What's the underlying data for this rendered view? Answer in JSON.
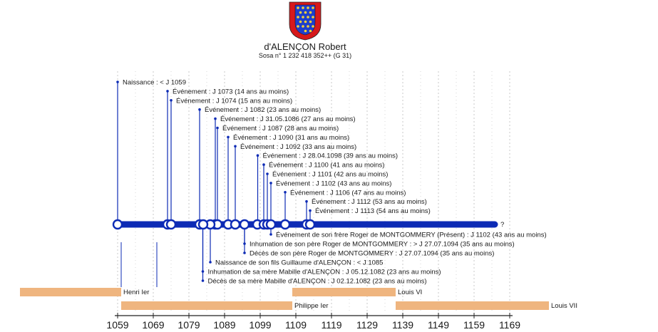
{
  "person": {
    "name": "d'ALENÇON Robert",
    "sosa": "Sosa n° 1 232 418 352++ (G 31)",
    "coat_of_arms_icon": "coat-of-arms-icon"
  },
  "colors": {
    "accent": "#0d2bb5",
    "reign": "#efb57f",
    "grid": "#bdbdbd",
    "coat_red": "#d6191b",
    "coat_blue": "#1d3fcc",
    "coat_gold": "#f2d03a"
  },
  "chart_data": {
    "type": "timeline",
    "x_ticks": [
      1059,
      1069,
      1079,
      1089,
      1099,
      1109,
      1119,
      1129,
      1139,
      1149,
      1159,
      1169
    ],
    "xlim": [
      1059,
      1169
    ],
    "grid": true,
    "timeline_end_label": "?",
    "life_start": 1059,
    "life_end": 1164,
    "events_above": [
      {
        "year": 1059,
        "label": "Naissance : < J 1059"
      },
      {
        "year": 1073,
        "label": "Événement : J 1073 (14 ans au moins)"
      },
      {
        "year": 1074,
        "label": "Événement : J 1074 (15 ans au moins)"
      },
      {
        "year": 1082,
        "label": "Événement : J 1082 (23 ans au moins)"
      },
      {
        "year": 1086.4,
        "label": "Événement : J 31.05.1086 (27 ans au moins)"
      },
      {
        "year": 1087,
        "label": "Événement : J 1087 (28 ans au moins)"
      },
      {
        "year": 1090,
        "label": "Événement : J 1090 (31 ans au moins)"
      },
      {
        "year": 1092,
        "label": "Événement : J 1092 (33 ans au moins)"
      },
      {
        "year": 1098.3,
        "label": "Événement : J 28.04.1098 (39 ans au moins)"
      },
      {
        "year": 1100,
        "label": "Événement : J 1100 (41 ans au moins)"
      },
      {
        "year": 1101,
        "label": "Événement : J 1101 (42 ans au moins)"
      },
      {
        "year": 1102,
        "label": "Événement : J 1102 (43 ans au moins)"
      },
      {
        "year": 1106,
        "label": "Événement : J 1106 (47 ans au moins)"
      },
      {
        "year": 1112,
        "label": "Événement : J 1112 (53 ans au moins)"
      },
      {
        "year": 1113,
        "label": "Événement : J 1113 (54 ans au moins)"
      }
    ],
    "events_below": [
      {
        "year": 1102,
        "label": "Événement de son frère Roger de MONTGOMMERY (Présent) : J 1102 (43 ans au moins)"
      },
      {
        "year": 1094.6,
        "label": "Inhumation de son père Roger de MONTGOMMERY : > J 27.07.1094 (35 ans au moins)"
      },
      {
        "year": 1094.6,
        "label": "Décès de son père Roger de MONTGOMMERY : J 27.07.1094 (35 ans au moins)"
      },
      {
        "year": 1085,
        "label": "Naissance de son fils Guillaume d'ALENÇON : < J 1085"
      },
      {
        "year": 1082.9,
        "label": "Inhumation de sa mère Mabille d'ALENÇON : J 05.12.1082 (23 ans au moins)"
      },
      {
        "year": 1082.9,
        "label": "Décès de sa mère Mabille d'ALENÇON : J 02.12.1082 (23 ans au moins)"
      }
    ],
    "reigns": [
      {
        "name": "Henri Ier",
        "start": 1031,
        "end": 1060,
        "row": 0
      },
      {
        "name": "Louis VI",
        "start": 1108,
        "end": 1137,
        "row": 0
      },
      {
        "name": "Philippe Ier",
        "start": 1060,
        "end": 1108,
        "row": 1
      },
      {
        "name": "Louis VII",
        "start": 1137,
        "end": 1180,
        "row": 1
      }
    ]
  }
}
